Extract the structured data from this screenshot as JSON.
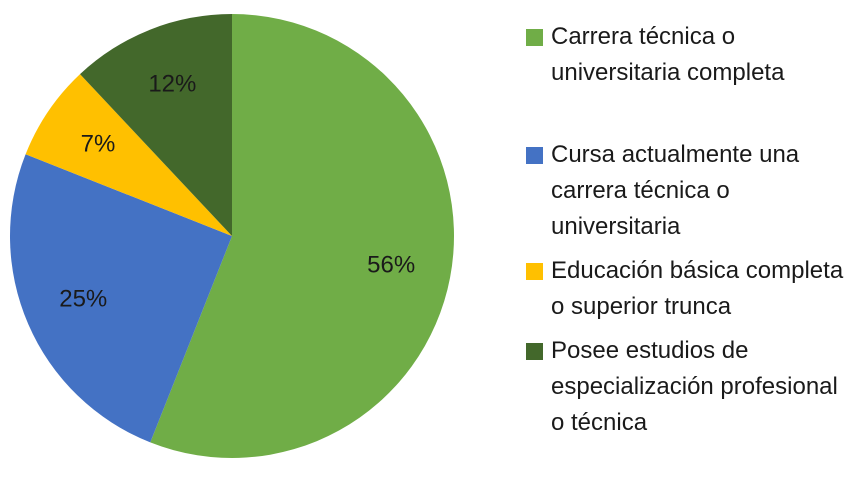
{
  "chart_data": {
    "type": "pie",
    "categories": [
      "Carrera técnica o universitaria completa",
      "Cursa actualmente una carrera técnica o universitaria",
      "Educación básica completa o superior trunca",
      "Posee estudios de especialización profesional o técnica"
    ],
    "values": [
      56,
      25,
      7,
      12
    ],
    "value_labels": [
      "56%",
      "25%",
      "7%",
      "12%"
    ],
    "colors": [
      "#70ad47",
      "#4472c4",
      "#ffc000",
      "#43682b"
    ],
    "legend": "right"
  }
}
